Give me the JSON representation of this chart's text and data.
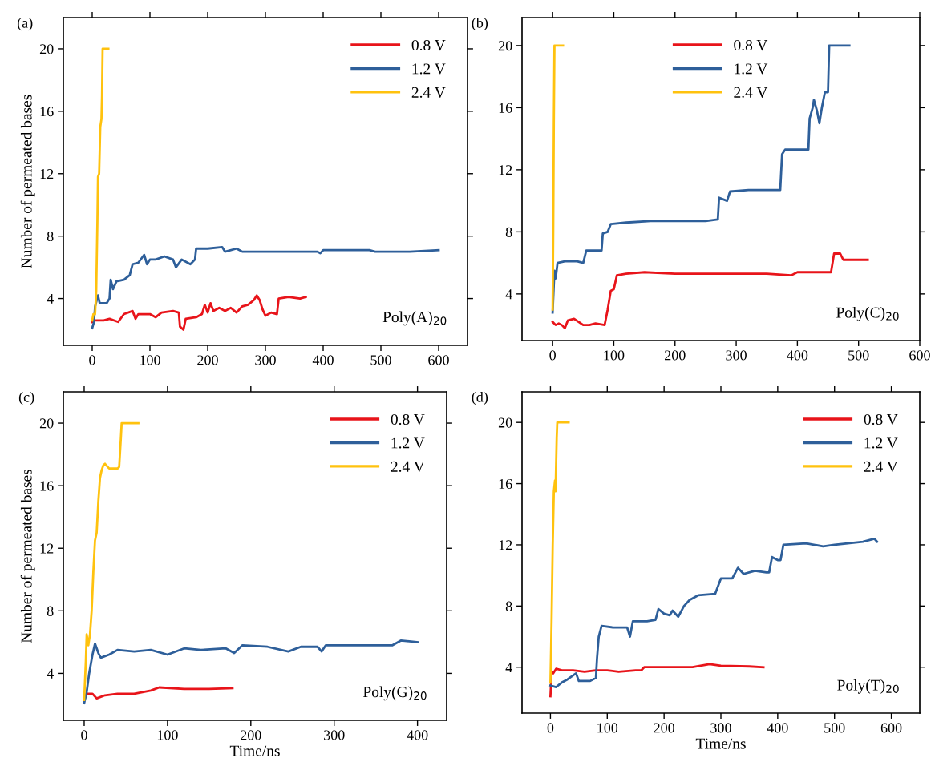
{
  "chart_data": [
    {
      "type": "line",
      "annotations": [
        "(a)",
        "Poly(A)$_{20}$"
      ],
      "ylabel": "Number of permeated bases",
      "xlim": [
        -50,
        650
      ],
      "xticks": [
        0,
        100,
        200,
        300,
        400,
        500,
        600
      ],
      "ylim": [
        1,
        22
      ],
      "yticks": [
        4,
        8,
        12,
        16,
        20
      ],
      "legend": "top right",
      "grid": false,
      "series": [
        {
          "name": "0.8 V",
          "color": "#e8141a",
          "x": [
            0,
            5,
            20,
            30,
            45,
            55,
            70,
            75,
            80,
            100,
            110,
            120,
            140,
            150,
            152,
            158,
            162,
            180,
            190,
            195,
            200,
            205,
            210,
            220,
            230,
            240,
            250,
            260,
            270,
            280,
            285,
            290,
            295,
            300,
            310,
            320,
            323,
            340,
            360,
            370
          ],
          "values": [
            2.5,
            2.6,
            2.6,
            2.7,
            2.5,
            3.0,
            3.2,
            2.7,
            3.0,
            3.0,
            2.8,
            3.1,
            3.2,
            3.1,
            2.2,
            2.0,
            2.7,
            2.8,
            3.0,
            3.6,
            3.1,
            3.7,
            3.2,
            3.4,
            3.2,
            3.4,
            3.1,
            3.5,
            3.6,
            3.9,
            4.2,
            3.9,
            3.3,
            2.9,
            3.1,
            3.0,
            4.0,
            4.1,
            4.0,
            4.1
          ]
        },
        {
          "name": "1.2 V",
          "color": "#2e5f9a",
          "x": [
            0,
            3,
            5,
            10,
            13,
            25,
            30,
            32,
            36,
            42,
            55,
            65,
            70,
            80,
            90,
            95,
            100,
            110,
            125,
            140,
            145,
            155,
            170,
            178,
            180,
            200,
            225,
            230,
            250,
            260,
            300,
            350,
            390,
            395,
            400,
            450,
            480,
            490,
            550,
            600
          ],
          "values": [
            2.1,
            2.5,
            3.5,
            4.2,
            3.7,
            3.7,
            4.0,
            5.2,
            4.6,
            5.1,
            5.2,
            5.5,
            6.2,
            6.3,
            6.8,
            6.2,
            6.5,
            6.5,
            6.7,
            6.5,
            6.0,
            6.5,
            6.2,
            6.5,
            7.2,
            7.2,
            7.3,
            7.0,
            7.2,
            7.0,
            7.0,
            7.0,
            7.0,
            6.9,
            7.1,
            7.1,
            7.1,
            7.0,
            7.0,
            7.1
          ]
        },
        {
          "name": "2.4 V",
          "color": "#ffc20e",
          "x": [
            0,
            2,
            5,
            7,
            9,
            10,
            12,
            14,
            16,
            17,
            18,
            20,
            28
          ],
          "values": [
            2.6,
            3.0,
            3.0,
            4.5,
            9,
            11.8,
            12.0,
            15.0,
            15.5,
            17,
            20,
            20,
            20
          ]
        }
      ]
    },
    {
      "type": "line",
      "annotations": [
        "(b)",
        "Poly(C)$_{20}$"
      ],
      "xlim": [
        -50,
        600
      ],
      "xticks": [
        0,
        100,
        200,
        300,
        400,
        500,
        600
      ],
      "ylim": [
        1,
        21.8
      ],
      "yticks": [
        4,
        8,
        12,
        16,
        20
      ],
      "legend": "top",
      "grid": false,
      "series": [
        {
          "name": "0.8 V",
          "color": "#e8141a",
          "x": [
            0,
            5,
            10,
            15,
            20,
            25,
            35,
            50,
            60,
            70,
            85,
            90,
            95,
            100,
            105,
            120,
            150,
            200,
            250,
            300,
            350,
            390,
            400,
            450,
            455,
            460,
            470,
            475,
            500,
            515
          ],
          "values": [
            2.2,
            2.0,
            2.1,
            2.0,
            1.8,
            2.3,
            2.4,
            2.0,
            2.0,
            2.1,
            2.0,
            3.0,
            4.2,
            4.3,
            5.2,
            5.3,
            5.4,
            5.3,
            5.3,
            5.3,
            5.3,
            5.2,
            5.4,
            5.4,
            5.4,
            6.6,
            6.6,
            6.2,
            6.2,
            6.2
          ]
        },
        {
          "name": "1.2 V",
          "color": "#2e5f9a",
          "x": [
            0,
            3,
            5,
            8,
            20,
            40,
            50,
            55,
            80,
            82,
            90,
            95,
            120,
            160,
            200,
            250,
            270,
            272,
            285,
            290,
            320,
            360,
            372,
            375,
            380,
            410,
            418,
            420,
            425,
            427,
            432,
            436,
            440,
            445,
            450,
            452,
            485
          ],
          "values": [
            2.8,
            5.5,
            5.0,
            6.0,
            6.1,
            6.1,
            6.0,
            6.8,
            6.8,
            7.9,
            8.0,
            8.5,
            8.6,
            8.7,
            8.7,
            8.7,
            8.8,
            10.2,
            10.0,
            10.6,
            10.7,
            10.7,
            10.7,
            13.0,
            13.3,
            13.3,
            13.3,
            15.3,
            16.0,
            16.5,
            15.8,
            15.0,
            16.0,
            17.0,
            17.0,
            20.0,
            20.0
          ]
        },
        {
          "name": "2.4 V",
          "color": "#ffc20e",
          "x": [
            0,
            1,
            2,
            3,
            17
          ],
          "values": [
            3.0,
            8,
            15,
            20,
            20
          ]
        }
      ]
    },
    {
      "type": "line",
      "annotations": [
        "(c)",
        "Poly(G)$_{20}$"
      ],
      "xlabel": "Time/ns",
      "ylabel": "Number of permeated bases",
      "xlim": [
        -25,
        435
      ],
      "xticks": [
        0,
        100,
        200,
        300,
        400
      ],
      "ylim": [
        1,
        22
      ],
      "yticks": [
        4,
        8,
        12,
        16,
        20
      ],
      "legend": "top right",
      "grid": false,
      "series": [
        {
          "name": "0.8 V",
          "color": "#e8141a",
          "x": [
            0,
            3,
            10,
            15,
            25,
            40,
            60,
            70,
            80,
            90,
            120,
            150,
            178
          ],
          "values": [
            2.3,
            2.7,
            2.7,
            2.4,
            2.6,
            2.7,
            2.7,
            2.8,
            2.9,
            3.1,
            3.0,
            3.0,
            3.05
          ]
        },
        {
          "name": "1.2 V",
          "color": "#2e5f9a",
          "x": [
            0,
            3,
            6,
            10,
            13,
            17,
            20,
            30,
            40,
            60,
            80,
            100,
            120,
            140,
            170,
            180,
            190,
            220,
            245,
            260,
            280,
            285,
            290,
            330,
            370,
            380,
            400
          ],
          "values": [
            2.1,
            2.8,
            4.0,
            5.2,
            5.9,
            5.3,
            5.0,
            5.2,
            5.5,
            5.4,
            5.5,
            5.2,
            5.6,
            5.5,
            5.6,
            5.3,
            5.8,
            5.7,
            5.4,
            5.7,
            5.7,
            5.4,
            5.8,
            5.8,
            5.8,
            6.1,
            6.0
          ]
        },
        {
          "name": "2.4 V",
          "color": "#ffc20e",
          "x": [
            0,
            2,
            3,
            5,
            7,
            9,
            11,
            13,
            15,
            17,
            19,
            21,
            23,
            25,
            30,
            40,
            42,
            44,
            45,
            65
          ],
          "values": [
            2.3,
            4.8,
            6.5,
            5.8,
            6.5,
            8,
            10.5,
            12.5,
            13,
            15,
            16.5,
            17.0,
            17.3,
            17.4,
            17.1,
            17.1,
            17.2,
            19,
            20,
            20
          ]
        }
      ]
    },
    {
      "type": "line",
      "annotations": [
        "(d)",
        "Poly(T)$_{20}$"
      ],
      "xlabel": "Time/ns",
      "xlim": [
        -50,
        650
      ],
      "xticks": [
        0,
        100,
        200,
        300,
        400,
        500,
        600
      ],
      "ylim": [
        1,
        22
      ],
      "yticks": [
        4,
        8,
        12,
        16,
        20
      ],
      "legend": "top right",
      "grid": false,
      "series": [
        {
          "name": "0.8 V",
          "color": "#e8141a",
          "x": [
            0,
            2,
            5,
            10,
            20,
            40,
            60,
            80,
            100,
            120,
            150,
            160,
            165,
            200,
            250,
            280,
            300,
            350,
            375
          ],
          "values": [
            2.1,
            3.7,
            3.6,
            3.9,
            3.8,
            3.8,
            3.7,
            3.8,
            3.8,
            3.7,
            3.8,
            3.8,
            4.0,
            4.0,
            4.0,
            4.2,
            4.1,
            4.05,
            4.0
          ]
        },
        {
          "name": "1.2 V",
          "color": "#2e5f9a",
          "x": [
            0,
            10,
            20,
            30,
            45,
            50,
            70,
            80,
            82,
            85,
            90,
            110,
            135,
            140,
            145,
            170,
            185,
            190,
            200,
            210,
            215,
            225,
            235,
            245,
            260,
            290,
            300,
            320,
            330,
            340,
            360,
            380,
            385,
            390,
            400,
            405,
            410,
            450,
            480,
            500,
            550,
            570,
            575
          ],
          "values": [
            2.8,
            2.7,
            3.0,
            3.2,
            3.6,
            3.1,
            3.1,
            3.3,
            4.6,
            6.0,
            6.7,
            6.6,
            6.6,
            6.0,
            7.0,
            7.0,
            7.1,
            7.8,
            7.5,
            7.4,
            7.7,
            7.3,
            8.0,
            8.4,
            8.7,
            8.8,
            9.8,
            9.8,
            10.5,
            10.1,
            10.3,
            10.2,
            10.2,
            11.2,
            11.0,
            11.0,
            12.0,
            12.1,
            11.9,
            12.0,
            12.2,
            12.4,
            12.2
          ]
        },
        {
          "name": "2.4 V",
          "color": "#ffc20e",
          "x": [
            0,
            2,
            4,
            6,
            8,
            9,
            11,
            12,
            15,
            32
          ],
          "values": [
            3,
            7,
            12,
            15.5,
            16.2,
            15.5,
            19,
            20,
            20,
            20
          ]
        }
      ]
    }
  ]
}
